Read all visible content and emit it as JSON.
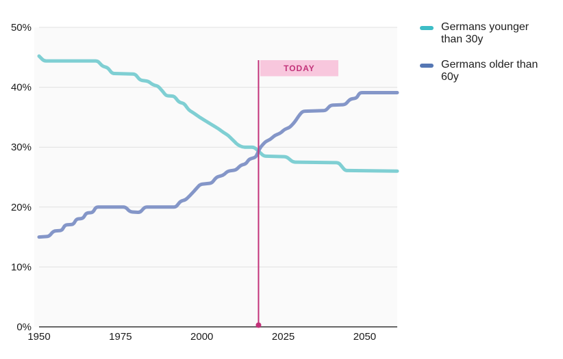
{
  "legend": {
    "items": [
      {
        "label": "Germans younger than 30y",
        "color": "#3dbdc6"
      },
      {
        "label": "Germans older than 60y",
        "color": "#5577b4"
      }
    ]
  },
  "chart_data": {
    "type": "line",
    "title": "",
    "xlabel": "",
    "ylabel": "",
    "grid": true,
    "legend_position": "right",
    "x_axis": {
      "range": [
        1950,
        2060
      ],
      "tick_years": [
        1950,
        1975,
        2000,
        2025,
        2050
      ],
      "tick_labels": [
        "1950",
        "1975",
        "2000",
        "2025",
        "2050"
      ]
    },
    "y_axis": {
      "range": [
        0,
        50
      ],
      "unit": "%",
      "tick_values": [
        0,
        10,
        20,
        30,
        40,
        50
      ],
      "tick_labels": [
        "0%",
        "10%",
        "20%",
        "30%",
        "40%",
        "50%"
      ]
    },
    "annotation": {
      "label": "TODAY",
      "year": 2017.4,
      "value_at_crossing": 29.3,
      "line_color": "#c23279",
      "box_fill": "#f8c7dd",
      "text_color": "#c23279"
    },
    "series": [
      {
        "name": "Germans younger than 30y",
        "color": "#7fcfd3",
        "points": [
          [
            1950,
            45.2
          ],
          [
            1951.5,
            44.4
          ],
          [
            1968,
            44.4
          ],
          [
            1969.5,
            43.5
          ],
          [
            1971,
            43.3
          ],
          [
            1972.5,
            42.3
          ],
          [
            1979.5,
            42.2
          ],
          [
            1981,
            41.2
          ],
          [
            1983.5,
            41
          ],
          [
            1985,
            40.4
          ],
          [
            1986.5,
            40.2
          ],
          [
            1988,
            39.3
          ],
          [
            1989,
            38.6
          ],
          [
            1991.5,
            38.5
          ],
          [
            1993,
            37.5
          ],
          [
            1994.5,
            37.3
          ],
          [
            1996,
            36.2
          ],
          [
            1997.5,
            35.7
          ],
          [
            1999,
            35.1
          ],
          [
            2000.5,
            34.6
          ],
          [
            2002,
            34.1
          ],
          [
            2003.5,
            33.6
          ],
          [
            2005,
            33.1
          ],
          [
            2006.5,
            32.5
          ],
          [
            2008,
            32
          ],
          [
            2009.5,
            31.2
          ],
          [
            2011,
            30.4
          ],
          [
            2012.5,
            30
          ],
          [
            2016,
            30
          ],
          [
            2017.5,
            29.3
          ],
          [
            2019,
            28.5
          ],
          [
            2026,
            28.4
          ],
          [
            2028,
            27.5
          ],
          [
            2042,
            27.4
          ],
          [
            2044,
            26.1
          ],
          [
            2060,
            26
          ]
        ]
      },
      {
        "name": "Germans older than 60y",
        "color": "#8496c8",
        "points": [
          [
            1950,
            15
          ],
          [
            1953,
            15.1
          ],
          [
            1954.5,
            16
          ],
          [
            1957,
            16.1
          ],
          [
            1958,
            17
          ],
          [
            1960.5,
            17.1
          ],
          [
            1961.5,
            18
          ],
          [
            1963.5,
            18.1
          ],
          [
            1964.5,
            19
          ],
          [
            1966.5,
            19.1
          ],
          [
            1967.5,
            20
          ],
          [
            1976.5,
            20
          ],
          [
            1978,
            19.2
          ],
          [
            1981,
            19.1
          ],
          [
            1982.5,
            20
          ],
          [
            1992,
            20
          ],
          [
            1993.5,
            21
          ],
          [
            1995,
            21.2
          ],
          [
            1996.5,
            22
          ],
          [
            1998,
            22.9
          ],
          [
            1999.5,
            23.8
          ],
          [
            2003,
            24
          ],
          [
            2004.5,
            25
          ],
          [
            2006.5,
            25.3
          ],
          [
            2008,
            26
          ],
          [
            2010.5,
            26.2
          ],
          [
            2012,
            27
          ],
          [
            2013.5,
            27.2
          ],
          [
            2014.5,
            28
          ],
          [
            2016.5,
            28.3
          ],
          [
            2018,
            30
          ],
          [
            2019.5,
            30.9
          ],
          [
            2021,
            31.3
          ],
          [
            2022.5,
            32
          ],
          [
            2024,
            32.3
          ],
          [
            2025.5,
            33
          ],
          [
            2027,
            33.3
          ],
          [
            2028.5,
            34.2
          ],
          [
            2030,
            35.4
          ],
          [
            2031,
            36
          ],
          [
            2038,
            36.1
          ],
          [
            2039.5,
            37
          ],
          [
            2044,
            37.1
          ],
          [
            2045.5,
            38
          ],
          [
            2047.5,
            38.2
          ],
          [
            2048.5,
            39.1
          ],
          [
            2060,
            39.1
          ]
        ]
      }
    ],
    "colors": {
      "plot_background": "#fafafa",
      "gridline": "#e0e0e0",
      "axis_line": "#666666",
      "tick_text": "#1a1a1a"
    },
    "style": {
      "line_width": 5,
      "today_line_width": 2
    }
  }
}
